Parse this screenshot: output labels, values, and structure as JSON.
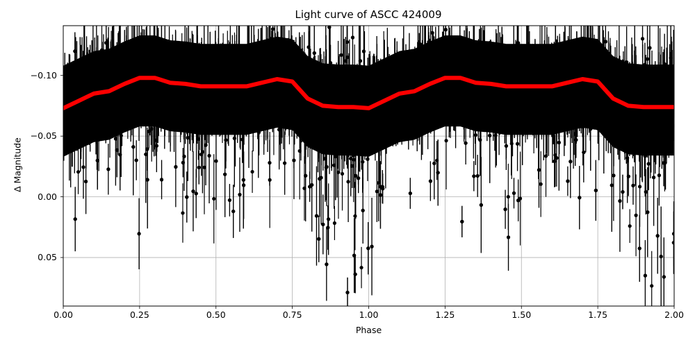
{
  "chart_data": {
    "type": "scatter",
    "title": "Light curve of ASCC 424009",
    "xlabel": "Phase",
    "ylabel": "Δ Magnitude",
    "xlim": [
      0.0,
      2.0
    ],
    "ylim": [
      0.09,
      -0.141
    ],
    "y_inverted": true,
    "grid": true,
    "x_ticks": [
      "0.00",
      "0.25",
      "0.50",
      "0.75",
      "1.00",
      "1.25",
      "1.50",
      "1.75",
      "2.00"
    ],
    "y_ticks": [
      "−0.10",
      "−0.05",
      "0.00",
      "0.05"
    ],
    "y_tick_values": [
      -0.1,
      -0.05,
      0.0,
      0.05
    ],
    "series": [
      {
        "name": "observations (with error bars)",
        "kind": "errorbar-scatter",
        "color": "#000000",
        "note": "dense cloud of points, phase-folded twice; core band roughly -0.13 to -0.04, outliers down to +0.09; deepest scatter near phase 0.9-1.05 and 1.9-2.0"
      },
      {
        "name": "binned mean",
        "kind": "line",
        "color": "#ff0000",
        "x": [
          0.0,
          0.05,
          0.1,
          0.15,
          0.2,
          0.25,
          0.3,
          0.35,
          0.4,
          0.45,
          0.5,
          0.55,
          0.6,
          0.65,
          0.7,
          0.75,
          0.8,
          0.85,
          0.9,
          0.95,
          1.0,
          1.05,
          1.1,
          1.15,
          1.2,
          1.25,
          1.3,
          1.35,
          1.4,
          1.45,
          1.5,
          1.55,
          1.6,
          1.65,
          1.7,
          1.75,
          1.8,
          1.85,
          1.9,
          1.95,
          2.0
        ],
        "values": [
          -0.073,
          -0.079,
          -0.085,
          -0.087,
          -0.093,
          -0.098,
          -0.098,
          -0.094,
          -0.093,
          -0.091,
          -0.091,
          -0.091,
          -0.091,
          -0.094,
          -0.097,
          -0.095,
          -0.081,
          -0.075,
          -0.074,
          -0.074,
          -0.073,
          -0.079,
          -0.085,
          -0.087,
          -0.093,
          -0.098,
          -0.098,
          -0.094,
          -0.093,
          -0.091,
          -0.091,
          -0.091,
          -0.091,
          -0.094,
          -0.097,
          -0.095,
          -0.081,
          -0.075,
          -0.074,
          -0.074,
          -0.074
        ]
      }
    ]
  }
}
